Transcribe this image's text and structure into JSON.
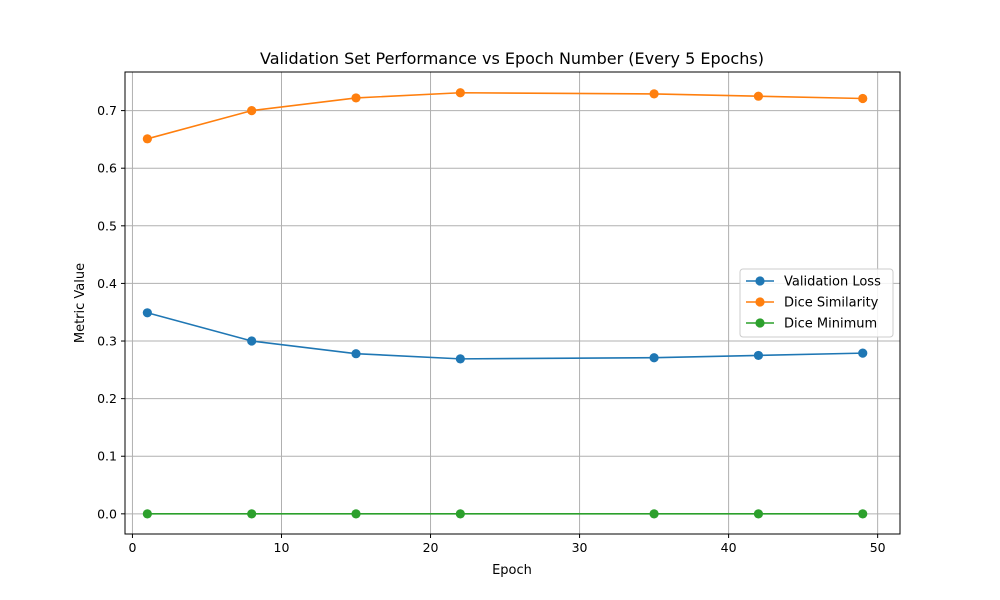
{
  "chart_data": {
    "type": "line",
    "title": "Validation Set Performance vs Epoch Number (Every 5 Epochs)",
    "xlabel": "Epoch",
    "ylabel": "Metric Value",
    "x": [
      1,
      8,
      15,
      22,
      35,
      42,
      49
    ],
    "xlim": [
      -0.5,
      51.5
    ],
    "ylim": [
      -0.035,
      0.767
    ],
    "xticks": [
      0,
      10,
      20,
      30,
      40,
      50
    ],
    "yticks": [
      0.0,
      0.1,
      0.2,
      0.3,
      0.4,
      0.5,
      0.6,
      0.7
    ],
    "xtick_labels": [
      "0",
      "10",
      "20",
      "30",
      "40",
      "50"
    ],
    "ytick_labels": [
      "0.0",
      "0.1",
      "0.2",
      "0.3",
      "0.4",
      "0.5",
      "0.6",
      "0.7"
    ],
    "grid": true,
    "legend_position": "center-right",
    "series": [
      {
        "name": "Validation Loss",
        "color": "#1f77b4",
        "values": [
          0.349,
          0.3,
          0.278,
          0.269,
          0.271,
          0.275,
          0.279
        ]
      },
      {
        "name": "Dice Similarity",
        "color": "#ff7f0e",
        "values": [
          0.651,
          0.7,
          0.722,
          0.731,
          0.729,
          0.725,
          0.721
        ]
      },
      {
        "name": "Dice Minimum",
        "color": "#2ca02c",
        "values": [
          0.0,
          0.0,
          0.0,
          0.0,
          0.0,
          0.0,
          0.0
        ]
      }
    ]
  }
}
